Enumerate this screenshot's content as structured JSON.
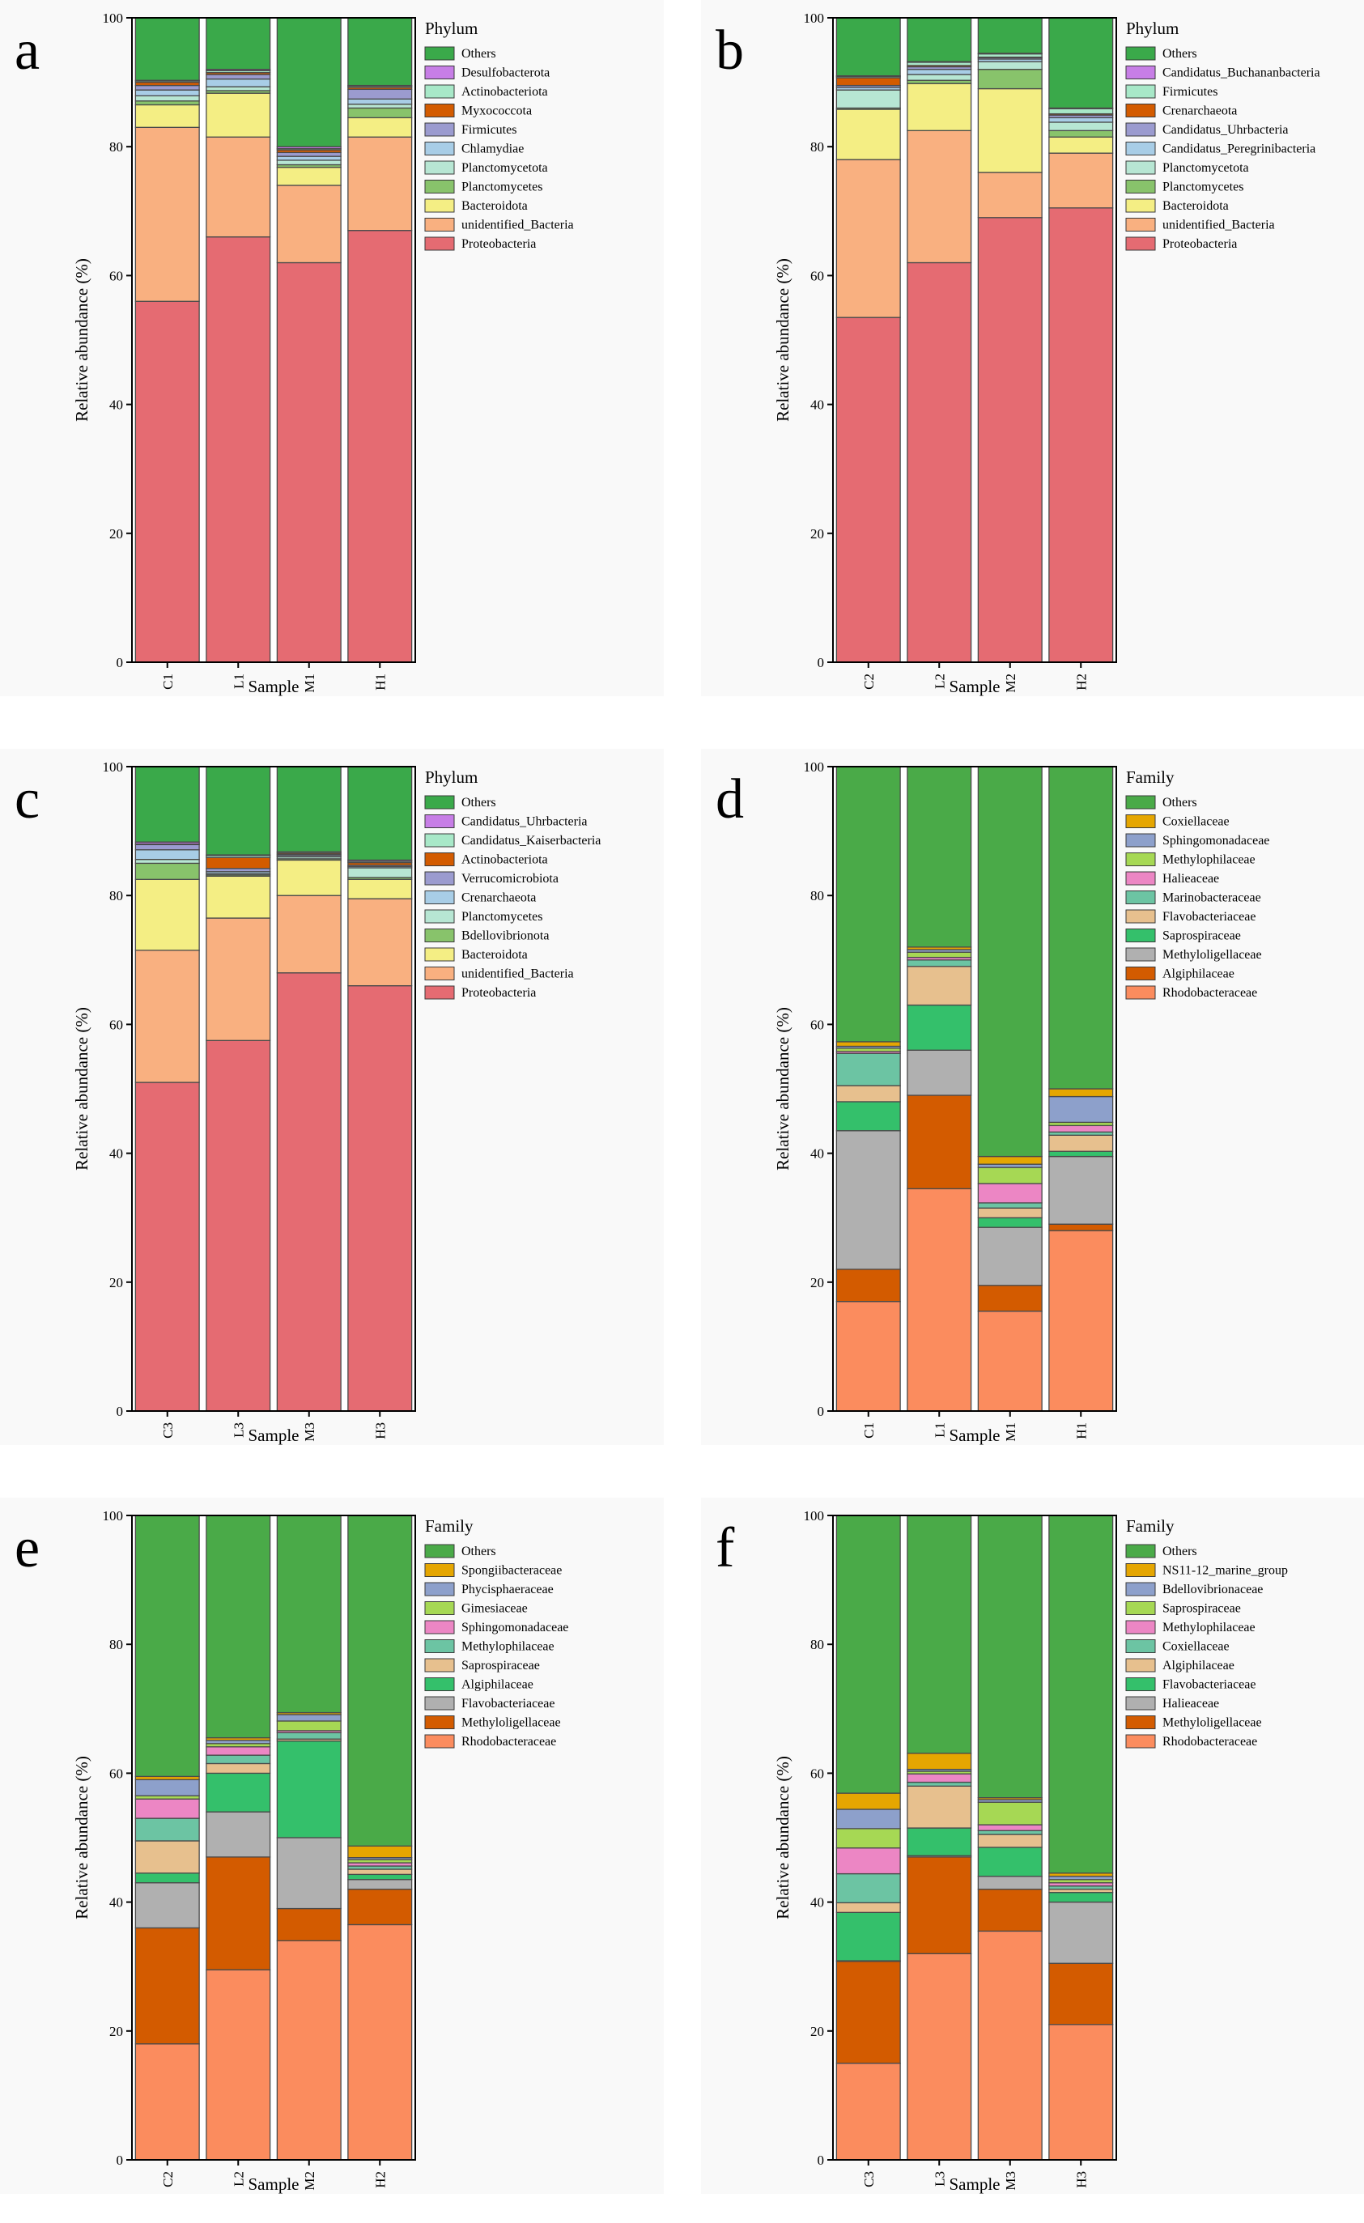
{
  "colors": {
    "phylum": {
      "Proteobacteria": "#e56b72",
      "unidentified_Bacteria": "#f9b080",
      "Bacteroidota": "#f4ee84",
      "Planctomycetes": "#88c36b",
      "Planctomycetota": "#b7e6d3",
      "Chlamydiae": "#a8cde6",
      "Firmicutes": "#9b9bcf",
      "Myxococcota": "#d35b00",
      "Actinobacteriota": "#a8e8c8",
      "Desulfobacterota": "#c77ee6",
      "Candidatus_Peregrinibacteria": "#a8cde6",
      "Candidatus_Uhrbacteria": "#9b9bcf",
      "Crenarchaeota": "#d35b00",
      "Candidatus_Buchananbacteria": "#c77ee6",
      "Bdellovibrionota": "#88c36b",
      "Planctomycetes_c": "#b7e6d3",
      "Verrucomicrobiota": "#9b9bcf",
      "Actinobacteriota_c": "#d35b00",
      "Candidatus_Kaiserbacteria": "#a8e8c8",
      "Candidatus_Uhrbacteria_c": "#c77ee6",
      "Others": "#3aa94a"
    }
  },
  "chart_data": [
    {
      "panel": "a",
      "type": "bar",
      "stacked": true,
      "legend_title": "Phylum",
      "ylabel": "Relative abundance (%)",
      "xlabel": "Sample",
      "ylim": [
        0,
        100
      ],
      "yticks": [
        "0",
        "20",
        "40",
        "60",
        "80",
        "100"
      ],
      "categories": [
        "C1",
        "L1",
        "M1",
        "H1"
      ],
      "series": [
        {
          "name": "Proteobacteria",
          "color": "#e56b72",
          "values": [
            56.0,
            66.0,
            62.0,
            67.0
          ]
        },
        {
          "name": "unidentified_Bacteria",
          "color": "#f9b080",
          "values": [
            27.0,
            15.5,
            12.0,
            14.5
          ]
        },
        {
          "name": "Bacteroidota",
          "color": "#f4ee84",
          "values": [
            3.5,
            6.8,
            2.8,
            3.0
          ]
        },
        {
          "name": "Planctomycetes",
          "color": "#88c36b",
          "values": [
            0.6,
            0.4,
            0.4,
            1.5
          ]
        },
        {
          "name": "Planctomycetota",
          "color": "#b7e6d3",
          "values": [
            0.8,
            0.6,
            0.7,
            0.6
          ]
        },
        {
          "name": "Chlamydiae",
          "color": "#a8cde6",
          "values": [
            0.9,
            1.2,
            0.6,
            0.8
          ]
        },
        {
          "name": "Firmicutes",
          "color": "#9b9bcf",
          "values": [
            0.7,
            0.7,
            0.6,
            1.5
          ]
        },
        {
          "name": "Myxococcota",
          "color": "#d35b00",
          "values": [
            0.5,
            0.3,
            0.4,
            0.3
          ]
        },
        {
          "name": "Actinobacteriota",
          "color": "#a8e8c8",
          "values": [
            0.2,
            0.3,
            0.2,
            0.2
          ]
        },
        {
          "name": "Desulfobacterota",
          "color": "#c77ee6",
          "values": [
            0.1,
            0.2,
            0.3,
            0.1
          ]
        },
        {
          "name": "Others",
          "color": "#3aa94a",
          "values": [
            9.7,
            8.0,
            20.0,
            10.5
          ]
        }
      ]
    },
    {
      "panel": "b",
      "type": "bar",
      "stacked": true,
      "legend_title": "Phylum",
      "ylabel": "Relative abundance (%)",
      "xlabel": "Sample",
      "ylim": [
        0,
        100
      ],
      "yticks": [
        "0",
        "20",
        "40",
        "60",
        "80",
        "100"
      ],
      "categories": [
        "C2",
        "L2",
        "M2",
        "H2"
      ],
      "series": [
        {
          "name": "Proteobacteria",
          "color": "#e56b72",
          "values": [
            53.5,
            62.0,
            69.0,
            70.5
          ]
        },
        {
          "name": "unidentified_Bacteria",
          "color": "#f9b080",
          "values": [
            24.5,
            20.5,
            7.0,
            8.5
          ]
        },
        {
          "name": "Bacteroidota",
          "color": "#f4ee84",
          "values": [
            7.8,
            7.3,
            13.0,
            2.5
          ]
        },
        {
          "name": "Planctomycetes",
          "color": "#88c36b",
          "values": [
            0.2,
            0.5,
            3.0,
            1.0
          ]
        },
        {
          "name": "Planctomycetota",
          "color": "#b7e6d3",
          "values": [
            2.8,
            0.9,
            1.2,
            1.3
          ]
        },
        {
          "name": "Candidatus_Peregrinibacteria",
          "color": "#a8cde6",
          "values": [
            0.4,
            0.8,
            0.4,
            0.7
          ]
        },
        {
          "name": "Candidatus_Uhrbacteria",
          "color": "#9b9bcf",
          "values": [
            0.3,
            0.4,
            0.2,
            0.4
          ]
        },
        {
          "name": "Crenarchaeota",
          "color": "#d35b00",
          "values": [
            1.2,
            0.2,
            0.1,
            0.2
          ]
        },
        {
          "name": "Firmicutes",
          "color": "#a8e8c8",
          "values": [
            0.2,
            0.5,
            0.5,
            0.8
          ]
        },
        {
          "name": "Candidatus_Buchananbacteria",
          "color": "#c77ee6",
          "values": [
            0.1,
            0.1,
            0.1,
            0.1
          ]
        },
        {
          "name": "Others",
          "color": "#3aa94a",
          "values": [
            9.0,
            6.8,
            5.5,
            14.0
          ]
        }
      ]
    },
    {
      "panel": "c",
      "type": "bar",
      "stacked": true,
      "legend_title": "Phylum",
      "ylabel": "Relative abundance (%)",
      "xlabel": "Sample",
      "ylim": [
        0,
        100
      ],
      "yticks": [
        "0",
        "20",
        "40",
        "60",
        "80",
        "100"
      ],
      "categories": [
        "C3",
        "L3",
        "M3",
        "H3"
      ],
      "series": [
        {
          "name": "Proteobacteria",
          "color": "#e56b72",
          "values": [
            51.0,
            57.5,
            68.0,
            66.0
          ]
        },
        {
          "name": "unidentified_Bacteria",
          "color": "#f9b080",
          "values": [
            20.5,
            19.0,
            12.0,
            13.5
          ]
        },
        {
          "name": "Bacteroidota",
          "color": "#f4ee84",
          "values": [
            11.0,
            6.5,
            5.5,
            3.0
          ]
        },
        {
          "name": "Bdellovibrionota",
          "color": "#88c36b",
          "values": [
            2.5,
            0.2,
            0.2,
            0.3
          ]
        },
        {
          "name": "Planctomycetes",
          "color": "#b7e6d3",
          "values": [
            0.6,
            0.2,
            0.3,
            1.5
          ]
        },
        {
          "name": "Crenarchaeota",
          "color": "#a8cde6",
          "values": [
            1.5,
            0.3,
            0.2,
            0.2
          ]
        },
        {
          "name": "Verrucomicrobiota",
          "color": "#9b9bcf",
          "values": [
            0.8,
            0.5,
            0.2,
            0.2
          ]
        },
        {
          "name": "Actinobacteriota",
          "color": "#d35b00",
          "values": [
            0.1,
            1.7,
            0.2,
            0.4
          ]
        },
        {
          "name": "Candidatus_Kaiserbacteria",
          "color": "#a8e8c8",
          "values": [
            0.0,
            0.3,
            0.2,
            0.2
          ]
        },
        {
          "name": "Candidatus_Uhrbacteria",
          "color": "#c77ee6",
          "values": [
            0.3,
            0.1,
            0.0,
            0.2
          ]
        },
        {
          "name": "Others",
          "color": "#3aa94a",
          "values": [
            11.7,
            13.7,
            13.2,
            14.5
          ]
        }
      ]
    },
    {
      "panel": "d",
      "type": "bar",
      "stacked": true,
      "legend_title": "Family",
      "ylabel": "Relative abundance (%)",
      "xlabel": "Sample",
      "ylim": [
        0,
        100
      ],
      "yticks": [
        "0",
        "20",
        "40",
        "60",
        "80",
        "100"
      ],
      "categories": [
        "C1",
        "L1",
        "M1",
        "H1"
      ],
      "series": [
        {
          "name": "Rhodobacteraceae",
          "color": "#fb8c5e",
          "values": [
            17.0,
            34.5,
            15.5,
            28.0
          ]
        },
        {
          "name": "Algiphilaceae",
          "color": "#d35b00",
          "values": [
            5.0,
            14.5,
            4.0,
            1.0
          ]
        },
        {
          "name": "Methyloligellaceae",
          "color": "#b0b0b0",
          "values": [
            21.5,
            7.0,
            9.0,
            10.5
          ]
        },
        {
          "name": "Saprospiraceae",
          "color": "#34c06b",
          "values": [
            4.5,
            7.0,
            1.5,
            0.8
          ]
        },
        {
          "name": "Flavobacteriaceae",
          "color": "#e7c08e",
          "values": [
            2.5,
            6.0,
            1.5,
            2.5
          ]
        },
        {
          "name": "Marinobacteraceae",
          "color": "#6cc4a3",
          "values": [
            5.0,
            1.0,
            0.8,
            0.5
          ]
        },
        {
          "name": "Halieaceae",
          "color": "#ec86c4",
          "values": [
            0.3,
            0.4,
            3.0,
            1.0
          ]
        },
        {
          "name": "Methylophilaceae",
          "color": "#a6d854",
          "values": [
            0.5,
            0.8,
            2.5,
            0.5
          ]
        },
        {
          "name": "Sphingomonadaceae",
          "color": "#8da0cb",
          "values": [
            0.3,
            0.4,
            0.5,
            4.0
          ]
        },
        {
          "name": "Coxiellaceae",
          "color": "#e5a601",
          "values": [
            0.7,
            0.4,
            1.2,
            1.2
          ]
        },
        {
          "name": "Others",
          "color": "#4aaa48",
          "values": [
            42.7,
            28.0,
            60.5,
            50.0
          ]
        }
      ]
    },
    {
      "panel": "e",
      "type": "bar",
      "stacked": true,
      "legend_title": "Family",
      "ylabel": "Relative abundance (%)",
      "xlabel": "Sample",
      "ylim": [
        0,
        100
      ],
      "yticks": [
        "0",
        "20",
        "40",
        "60",
        "80",
        "100"
      ],
      "categories": [
        "C2",
        "L2",
        "M2",
        "H2"
      ],
      "series": [
        {
          "name": "Rhodobacteraceae",
          "color": "#fb8c5e",
          "values": [
            18.0,
            29.5,
            34.0,
            36.5
          ]
        },
        {
          "name": "Methyloligellaceae",
          "color": "#d35b00",
          "values": [
            18.0,
            17.5,
            5.0,
            5.5
          ]
        },
        {
          "name": "Flavobacteriaceae",
          "color": "#b0b0b0",
          "values": [
            7.0,
            7.0,
            11.0,
            1.5
          ]
        },
        {
          "name": "Algiphilaceae",
          "color": "#34c06b",
          "values": [
            1.5,
            6.0,
            15.0,
            0.8
          ]
        },
        {
          "name": "Saprospiraceae",
          "color": "#e7c08e",
          "values": [
            5.0,
            1.5,
            0.3,
            0.8
          ]
        },
        {
          "name": "Methylophilaceae",
          "color": "#6cc4a3",
          "values": [
            3.5,
            1.3,
            1.0,
            0.5
          ]
        },
        {
          "name": "Sphingomonadaceae",
          "color": "#ec86c4",
          "values": [
            3.0,
            1.3,
            0.3,
            0.5
          ]
        },
        {
          "name": "Gimesiaceae",
          "color": "#a6d854",
          "values": [
            0.5,
            0.5,
            1.5,
            0.5
          ]
        },
        {
          "name": "Phycisphaeraceae",
          "color": "#8da0cb",
          "values": [
            2.5,
            0.5,
            1.0,
            0.3
          ]
        },
        {
          "name": "Spongiibacteraceae",
          "color": "#e5a601",
          "values": [
            0.5,
            0.4,
            0.3,
            1.8
          ]
        },
        {
          "name": "Others",
          "color": "#4aaa48",
          "values": [
            40.5,
            34.5,
            30.6,
            51.3
          ]
        }
      ]
    },
    {
      "panel": "f",
      "type": "bar",
      "stacked": true,
      "legend_title": "Family",
      "ylabel": "Relative abundance (%)",
      "xlabel": "Sample",
      "ylim": [
        0,
        100
      ],
      "yticks": [
        "0",
        "20",
        "40",
        "60",
        "80",
        "100"
      ],
      "categories": [
        "C3",
        "L3",
        "M3",
        "H3"
      ],
      "series": [
        {
          "name": "Rhodobacteraceae",
          "color": "#fb8c5e",
          "values": [
            15.0,
            32.0,
            35.5,
            21.0
          ]
        },
        {
          "name": "Methyloligellaceae",
          "color": "#d35b00",
          "values": [
            15.8,
            15.0,
            6.5,
            9.5
          ]
        },
        {
          "name": "Halieaceae",
          "color": "#b0b0b0",
          "values": [
            0.1,
            0.2,
            2.0,
            9.5
          ]
        },
        {
          "name": "Flavobacteriaceae",
          "color": "#34c06b",
          "values": [
            7.5,
            4.3,
            4.5,
            1.5
          ]
        },
        {
          "name": "Algiphilaceae",
          "color": "#e7c08e",
          "values": [
            1.5,
            6.5,
            2.0,
            0.5
          ]
        },
        {
          "name": "Coxiellaceae",
          "color": "#6cc4a3",
          "values": [
            4.5,
            0.6,
            0.6,
            0.5
          ]
        },
        {
          "name": "Methylophilaceae",
          "color": "#ec86c4",
          "values": [
            4.0,
            1.3,
            0.9,
            0.5
          ]
        },
        {
          "name": "Saprospiraceae",
          "color": "#a6d854",
          "values": [
            3.0,
            0.4,
            3.5,
            0.5
          ]
        },
        {
          "name": "Bdellovibrionaceae",
          "color": "#8da0cb",
          "values": [
            3.0,
            0.3,
            0.4,
            0.5
          ]
        },
        {
          "name": "NS11-12_marine_group",
          "color": "#e5a601",
          "values": [
            2.5,
            2.5,
            0.3,
            0.5
          ]
        },
        {
          "name": "Others",
          "color": "#4aaa48",
          "values": [
            43.1,
            36.9,
            43.8,
            55.5
          ]
        }
      ]
    }
  ]
}
